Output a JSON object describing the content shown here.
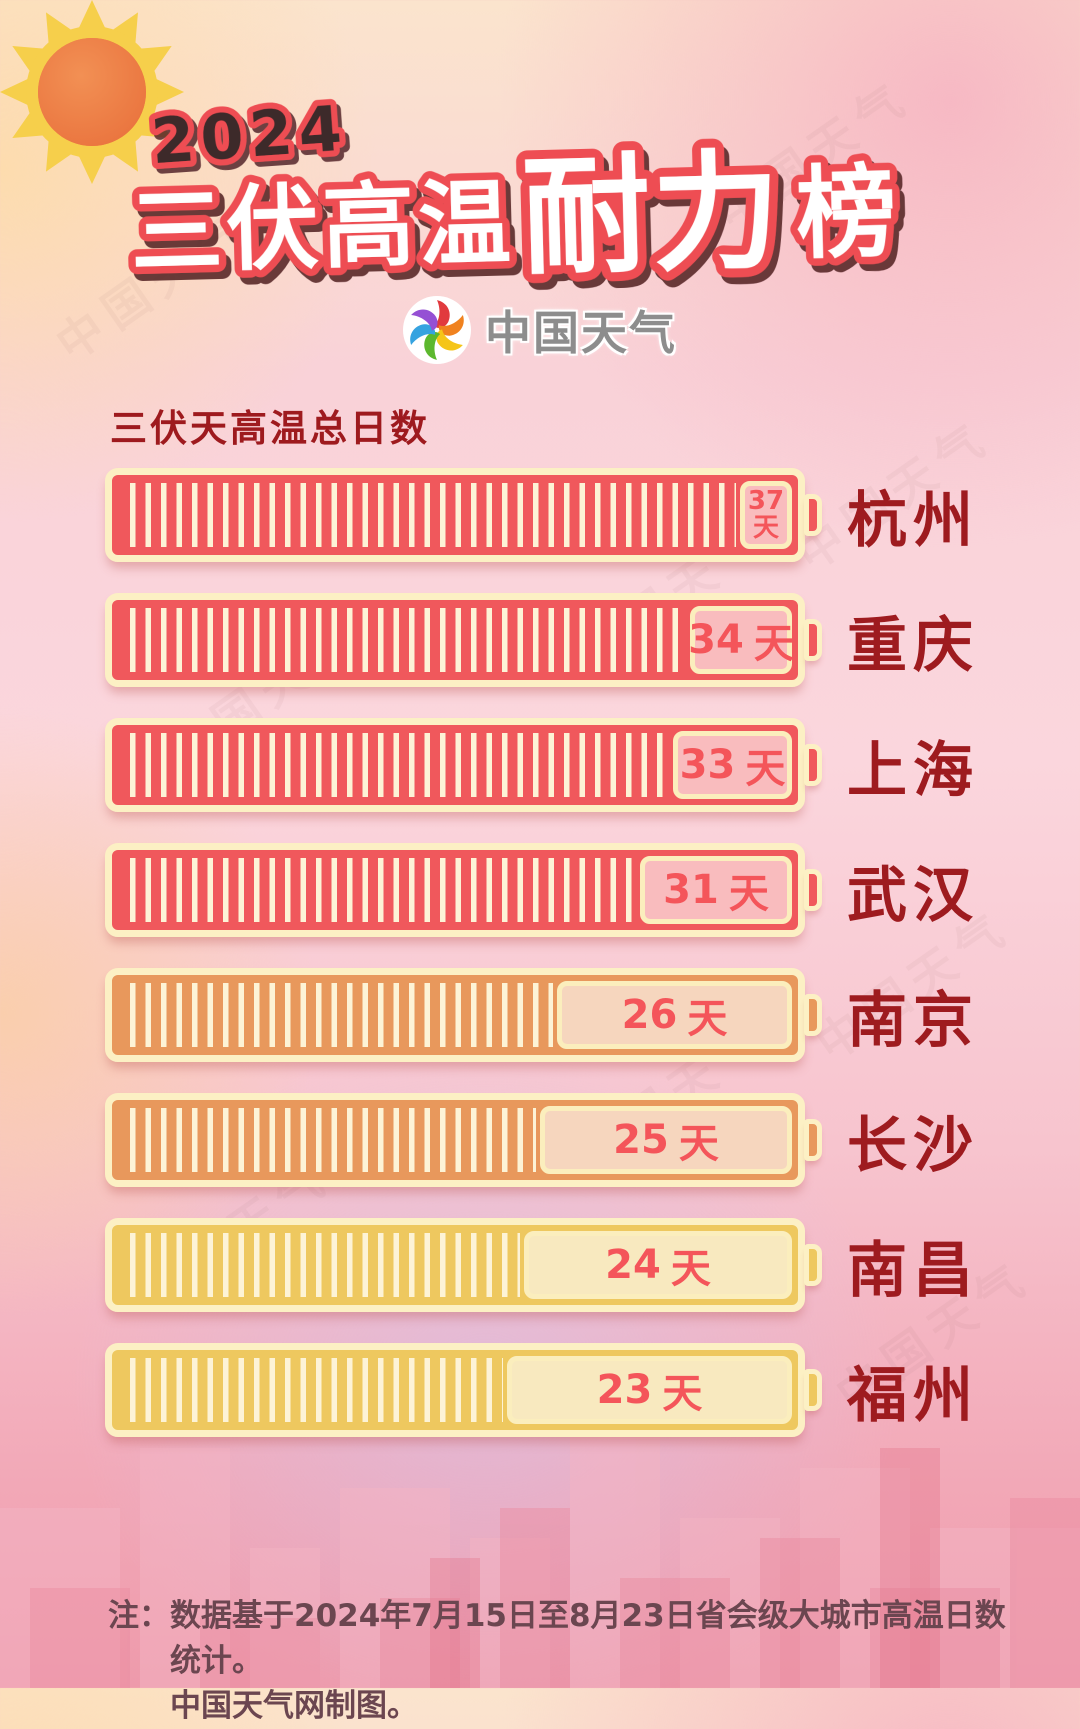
{
  "header": {
    "year": "2024",
    "title1": "三伏高温",
    "title2": "耐力",
    "title3": "榜"
  },
  "brand": {
    "name": "中国天气",
    "watermark": "中国天气"
  },
  "chart_data": {
    "type": "bar",
    "orientation": "horizontal-battery",
    "title": "三伏天高温总日数",
    "unit": "天",
    "xlim": [
      0,
      40
    ],
    "categories": [
      "杭州",
      "重庆",
      "上海",
      "武汉",
      "南京",
      "长沙",
      "南昌",
      "福州"
    ],
    "values": [
      37,
      34,
      33,
      31,
      26,
      25,
      24,
      23
    ],
    "bar_colors": [
      "#f0585c",
      "#f0585c",
      "#f0585c",
      "#f0585c",
      "#e8985c",
      "#e8985c",
      "#eec85f",
      "#eec85f"
    ],
    "value_label_color": "#f4555a",
    "battery_border_color": "#fcf0c4",
    "city_label_color": "#9e1b1f"
  },
  "footer": {
    "prefix": "注：",
    "line1": "数据基于2024年7月15日至8月23日省会级大城市高温日数统计。",
    "line2": "中国天气网制图。"
  },
  "colors": {
    "dark_red": "#9e1a1e",
    "title_stroke": "#ee4e53",
    "sun_disc": "#ee8146",
    "sun_rays": "#f6cf4b"
  }
}
